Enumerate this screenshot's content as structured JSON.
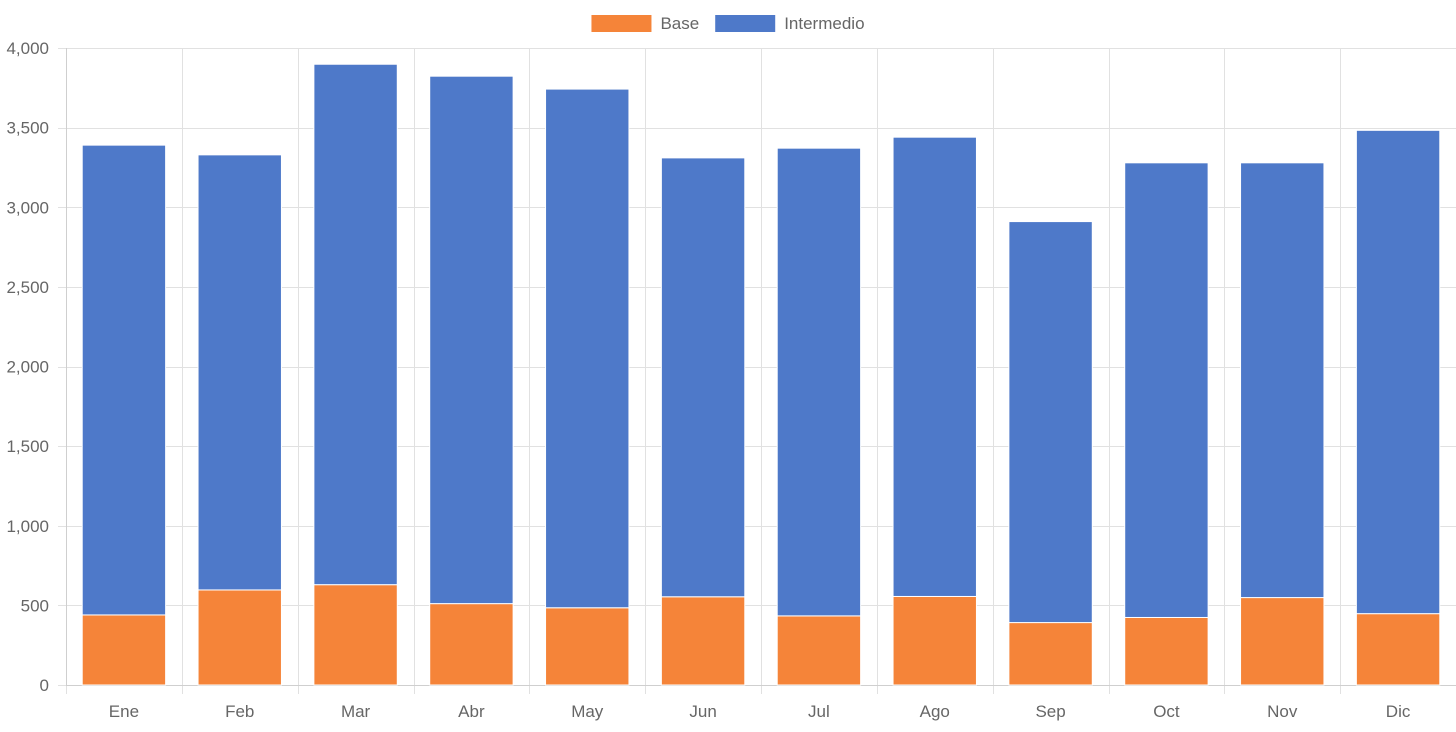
{
  "chart_data": {
    "type": "bar",
    "stacked": true,
    "categories": [
      "Ene",
      "Feb",
      "Mar",
      "Abr",
      "May",
      "Jun",
      "Jul",
      "Ago",
      "Sep",
      "Oct",
      "Nov",
      "Dic"
    ],
    "series": [
      {
        "name": "Base",
        "color": "#f58439",
        "values": [
          440,
          597,
          630,
          511,
          485,
          554,
          434,
          556,
          392,
          424,
          549,
          448
        ]
      },
      {
        "name": "Intermedio",
        "color": "#4e79c9",
        "values": [
          2950,
          2732,
          3268,
          3312,
          3257,
          2756,
          2937,
          2884,
          2518,
          2855,
          2730,
          3035
        ]
      }
    ],
    "ylim": [
      0,
      4000
    ],
    "yticks": [
      0,
      500,
      1000,
      1500,
      2000,
      2500,
      3000,
      3500,
      4000
    ],
    "ytick_labels": [
      "0",
      "500",
      "1,000",
      "1,500",
      "2,000",
      "2,500",
      "3,000",
      "3,500",
      "4,000"
    ],
    "legend_position": "top-center",
    "grid": true,
    "title": "",
    "xlabel": "",
    "ylabel": ""
  }
}
